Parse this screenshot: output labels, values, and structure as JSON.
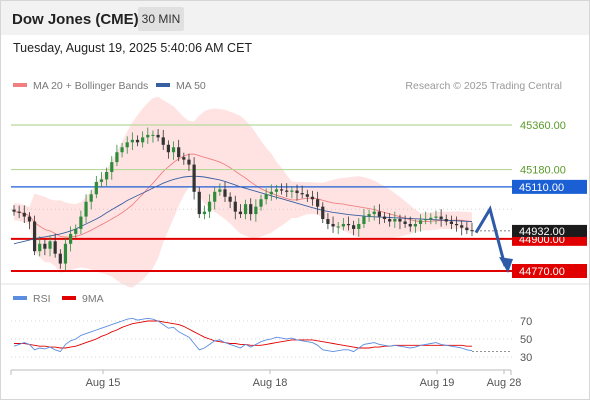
{
  "header": {
    "title": "Dow Jones (CME)",
    "timeframe": "30 MIN"
  },
  "datetime": "Tuesday, August 19, 2025 5:40:06 AM CET",
  "legend": {
    "ma20": {
      "label": "MA 20 + Bollinger Bands",
      "color": "#f08080"
    },
    "ma50": {
      "label": "MA 50",
      "color": "#3a5fa0"
    }
  },
  "copyright": "Research © 2025 Trading Central",
  "price_levels": [
    {
      "label": "45360.00",
      "value": 45360,
      "kind": "resistance",
      "color": "#b8d89a"
    },
    {
      "label": "45180.00",
      "value": 45180,
      "kind": "resistance",
      "color": "#b8d89a"
    },
    {
      "label": "45110.00",
      "value": 45110,
      "kind": "pivot",
      "color": "#1a5fd4"
    },
    {
      "label": "44900.00",
      "value": 44900,
      "kind": "support",
      "color": "#e00000"
    },
    {
      "label": "44770.00",
      "value": 44770,
      "kind": "support",
      "color": "#e00000"
    }
  ],
  "current_price": {
    "label": "44932.00",
    "value": 44932
  },
  "rsi_legend": {
    "rsi": {
      "label": "RSI",
      "color": "#5b8de0"
    },
    "ma9": {
      "label": "9MA",
      "color": "#e00000"
    }
  },
  "rsi_levels": [
    {
      "label": "70",
      "value": 70
    },
    {
      "label": "50",
      "value": 50
    },
    {
      "label": "30",
      "value": 30
    }
  ],
  "x_axis": {
    "labels": [
      "Aug 15",
      "Aug 18",
      "Aug 19",
      "Aug 28"
    ]
  },
  "chart_data": {
    "type": "candlestick",
    "ylim": [
      44720,
      45430
    ],
    "closes": [
      45010,
      45005,
      44990,
      44970,
      44850,
      44880,
      44860,
      44890,
      44840,
      44800,
      44880,
      44920,
      44940,
      44990,
      45050,
      45080,
      45130,
      45140,
      45170,
      45210,
      45250,
      45270,
      45290,
      45300,
      45290,
      45310,
      45320,
      45320,
      45310,
      45280,
      45250,
      45270,
      45230,
      45220,
      45200,
      45090,
      45000,
      45010,
      45050,
      45090,
      45100,
      45070,
      45050,
      45010,
      45000,
      45040,
      45000,
      45030,
      45060,
      45080,
      45090,
      45100,
      45095,
      45090,
      45095,
      45085,
      45080,
      45070,
      45060,
      45030,
      44980,
      44960,
      44950,
      44950,
      44960,
      44955,
      44940,
      44960,
      44990,
      45000,
      45010,
      44990,
      44980,
      44970,
      44980,
      44970,
      44960,
      44950,
      44960,
      44975,
      44980,
      44985,
      44990,
      44980,
      44970,
      44960,
      44955,
      44945,
      44935,
      44932
    ],
    "ma50": [
      44880,
      44885,
      44890,
      44895,
      44900,
      44905,
      44908,
      44912,
      44916,
      44920,
      44925,
      44932,
      44940,
      44950,
      44960,
      44970,
      44980,
      44992,
      45005,
      45018,
      45030,
      45042,
      45055,
      45065,
      45075,
      45085,
      45095,
      45105,
      45115,
      45125,
      45133,
      45140,
      45145,
      45150,
      45152,
      45153,
      45152,
      45150,
      45146,
      45142,
      45138,
      45132,
      45125,
      45118,
      45110,
      45104,
      45098,
      45092,
      45086,
      45080,
      45074,
      45068,
      45062,
      45056,
      45050,
      45044,
      45038,
      45032,
      45026,
      45020,
      45015,
      45011,
      45007,
      45004,
      45001,
      44998,
      44996,
      44994,
      44992,
      44990,
      44989,
      44988,
      44987,
      44986,
      44985,
      44984,
      44983,
      44982,
      44981,
      44980,
      44979,
      44978,
      44977,
      44976,
      44975,
      44974,
      44973,
      44972,
      44971,
      44970
    ],
    "rsi": [
      42,
      44,
      46,
      44,
      38,
      40,
      39,
      41,
      38,
      36,
      44,
      48,
      50,
      54,
      56,
      58,
      60,
      62,
      64,
      66,
      68,
      70,
      72,
      73,
      71,
      72,
      73,
      72,
      70,
      66,
      62,
      63,
      58,
      55,
      52,
      45,
      38,
      40,
      44,
      48,
      49,
      46,
      44,
      42,
      40,
      44,
      41,
      44,
      47,
      49,
      50,
      52,
      51,
      50,
      51,
      49,
      48,
      47,
      46,
      43,
      38,
      37,
      36,
      37,
      38,
      38,
      36,
      40,
      44,
      45,
      46,
      44,
      43,
      42,
      43,
      42,
      41,
      40,
      41,
      43,
      44,
      45,
      46,
      44,
      43,
      42,
      41,
      40,
      38,
      37
    ],
    "rsi_ma9": [
      45,
      45,
      45,
      44,
      43,
      42,
      42,
      41,
      41,
      40,
      40,
      41,
      42,
      44,
      46,
      48,
      50,
      53,
      55,
      58,
      60,
      63,
      65,
      67,
      68,
      69,
      70,
      70,
      70,
      69,
      68,
      67,
      66,
      64,
      61,
      58,
      55,
      52,
      50,
      48,
      47,
      46,
      45,
      45,
      44,
      44,
      43,
      43,
      43,
      44,
      45,
      46,
      47,
      48,
      49,
      49,
      49,
      49,
      49,
      48,
      47,
      46,
      45,
      44,
      43,
      42,
      41,
      40,
      40,
      40,
      41,
      41,
      42,
      42,
      43,
      43,
      43,
      43,
      43,
      43,
      43,
      43,
      43,
      43,
      43,
      43,
      43,
      43,
      42,
      42
    ]
  }
}
